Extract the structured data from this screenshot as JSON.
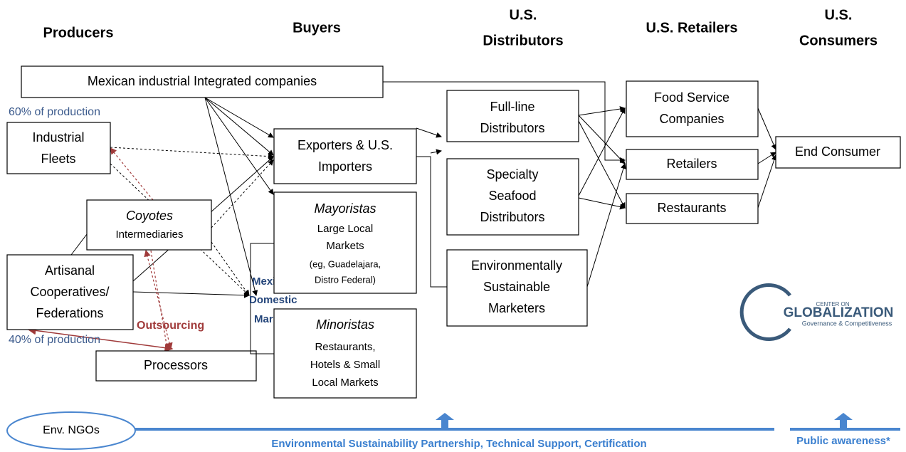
{
  "headers": {
    "producers": "Producers",
    "buyers": "Buyers",
    "distributors": [
      "U.S.",
      "Distributors"
    ],
    "retailers": "U.S. Retailers",
    "consumers": [
      "U.S.",
      "Consumers"
    ]
  },
  "nodes": {
    "integrated": "Mexican industrial Integrated companies",
    "share_industrial": "60% of production",
    "fleets": [
      "Industrial",
      "Fleets"
    ],
    "coyotes": [
      "Coyotes",
      "Intermediaries"
    ],
    "artisanal": [
      "Artisanal",
      "Cooperatives/",
      "Federations"
    ],
    "share_artisanal": "40% of production",
    "processors": "Processors",
    "outsourcing": "Outsourcing",
    "exporters": [
      "Exporters & U.S.",
      "Importers"
    ],
    "domestic": [
      "Mexican",
      "Domestic",
      "Market"
    ],
    "mayoristas": [
      "Mayoristas",
      "Large Local",
      "Markets",
      "(eg, Guadelajara,",
      "Distro Federal)"
    ],
    "minoristas": [
      "Minoristas",
      "Restaurants,",
      "Hotels & Small",
      "Local Markets"
    ],
    "fullline": [
      "Full-line",
      "Distributors"
    ],
    "specialty": [
      "Specialty",
      "Seafood",
      "Distributors"
    ],
    "envmarketers": [
      "Environmentally",
      "Sustainable",
      "Marketers"
    ],
    "foodservice": [
      "Food Service",
      "Companies"
    ],
    "retailers": "Retailers",
    "restaurants": "Restaurants",
    "endconsumer": "End Consumer"
  },
  "logo": [
    "CENTER ON",
    "GLOBALIZATION",
    "Governance & Competitiveness"
  ],
  "footer": {
    "ngos": "Env. NGOs",
    "support": "Environmental Sustainability Partnership, Technical Support, Certification",
    "public": "Public awareness*"
  }
}
